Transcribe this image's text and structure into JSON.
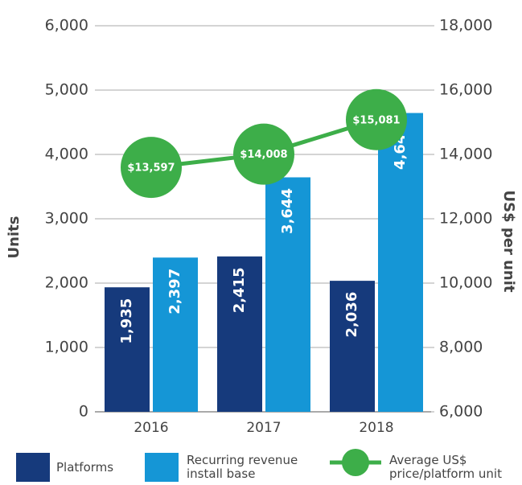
{
  "chart_data": {
    "type": "bar",
    "categories": [
      "2016",
      "2017",
      "2018"
    ],
    "series": [
      {
        "name": "Platforms",
        "color": "#163a7c",
        "values": [
          1935,
          2415,
          2036
        ],
        "value_labels": [
          "1,935",
          "2,415",
          "2,036"
        ]
      },
      {
        "name": "Recurring revenue install base",
        "color": "#1596d6",
        "values": [
          2397,
          3644,
          4644
        ],
        "value_labels": [
          "2,397",
          "3,644",
          "4,644"
        ]
      },
      {
        "name": "Average US$ price/platform unit",
        "type": "line",
        "axis": "y2",
        "color": "#3dae49",
        "values": [
          13597,
          14008,
          15081
        ],
        "value_labels": [
          "$13,597",
          "$14,008",
          "$15,081"
        ]
      }
    ],
    "y_label": "Units",
    "y2_label": "US$ per unit",
    "ylim": [
      0,
      6000
    ],
    "yticks": [
      0,
      {
        "value": 1000,
        "label": "1,000"
      },
      {
        "value": 2000,
        "label": "2,000"
      },
      {
        "value": 3000,
        "label": "3,000"
      },
      {
        "value": 4000,
        "label": "4,000"
      },
      {
        "value": 5000,
        "label": "5,000"
      },
      {
        "value": 6000,
        "label": "6,000"
      }
    ],
    "y2lim": [
      6000,
      18000
    ],
    "y2ticks": [
      {
        "value": 6000,
        "label": "6,000"
      },
      {
        "value": 8000,
        "label": "8,000"
      },
      {
        "value": 10000,
        "label": "10,000"
      },
      {
        "value": 12000,
        "label": "12,000"
      },
      {
        "value": 14000,
        "label": "14,000"
      },
      {
        "value": 16000,
        "label": "16,000"
      },
      {
        "value": 18000,
        "label": "18,000"
      }
    ],
    "grid": true
  }
}
